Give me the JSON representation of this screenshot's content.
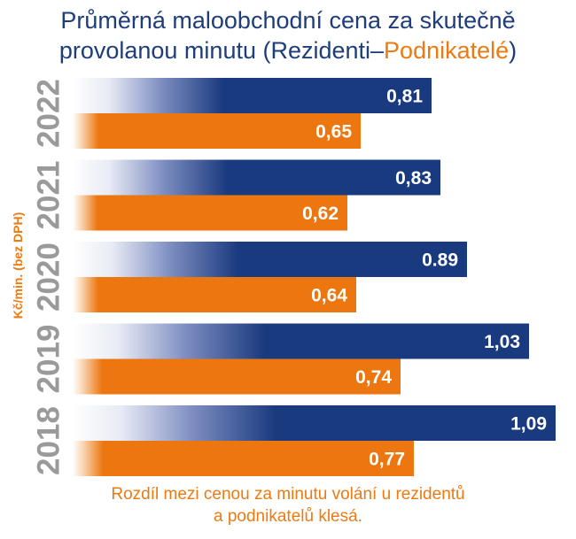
{
  "chart_data": {
    "type": "bar",
    "orientation": "horizontal",
    "title_main": "Průměrná maloobchodní cena za skutečně provolanou minutu (Rezidenti–",
    "title_highlight": "Podnikatelé",
    "title_end": ")",
    "ylabel": "Kč/min. (bez DPH)",
    "categories": [
      "2022",
      "2021",
      "2020",
      "2019",
      "2018"
    ],
    "series": [
      {
        "name": "Rezidenti",
        "color": "#1a3a7f",
        "values": [
          0.81,
          0.83,
          0.89,
          1.03,
          1.09
        ],
        "labels": [
          "0,81",
          "0,83",
          "0.89",
          "1,03",
          "1,09"
        ]
      },
      {
        "name": "Podnikatelé",
        "color": "#ec760f",
        "values": [
          0.65,
          0.62,
          0.64,
          0.74,
          0.77
        ],
        "labels": [
          "0,65",
          "0,62",
          "0,64",
          "0,74",
          "0,77"
        ]
      }
    ],
    "xlim": [
      0,
      1.09
    ],
    "footnote_line1": "Rozdíl mezi cenou za minutu volání u rezidentů",
    "footnote_line2": "a podnikatelů klesá."
  }
}
